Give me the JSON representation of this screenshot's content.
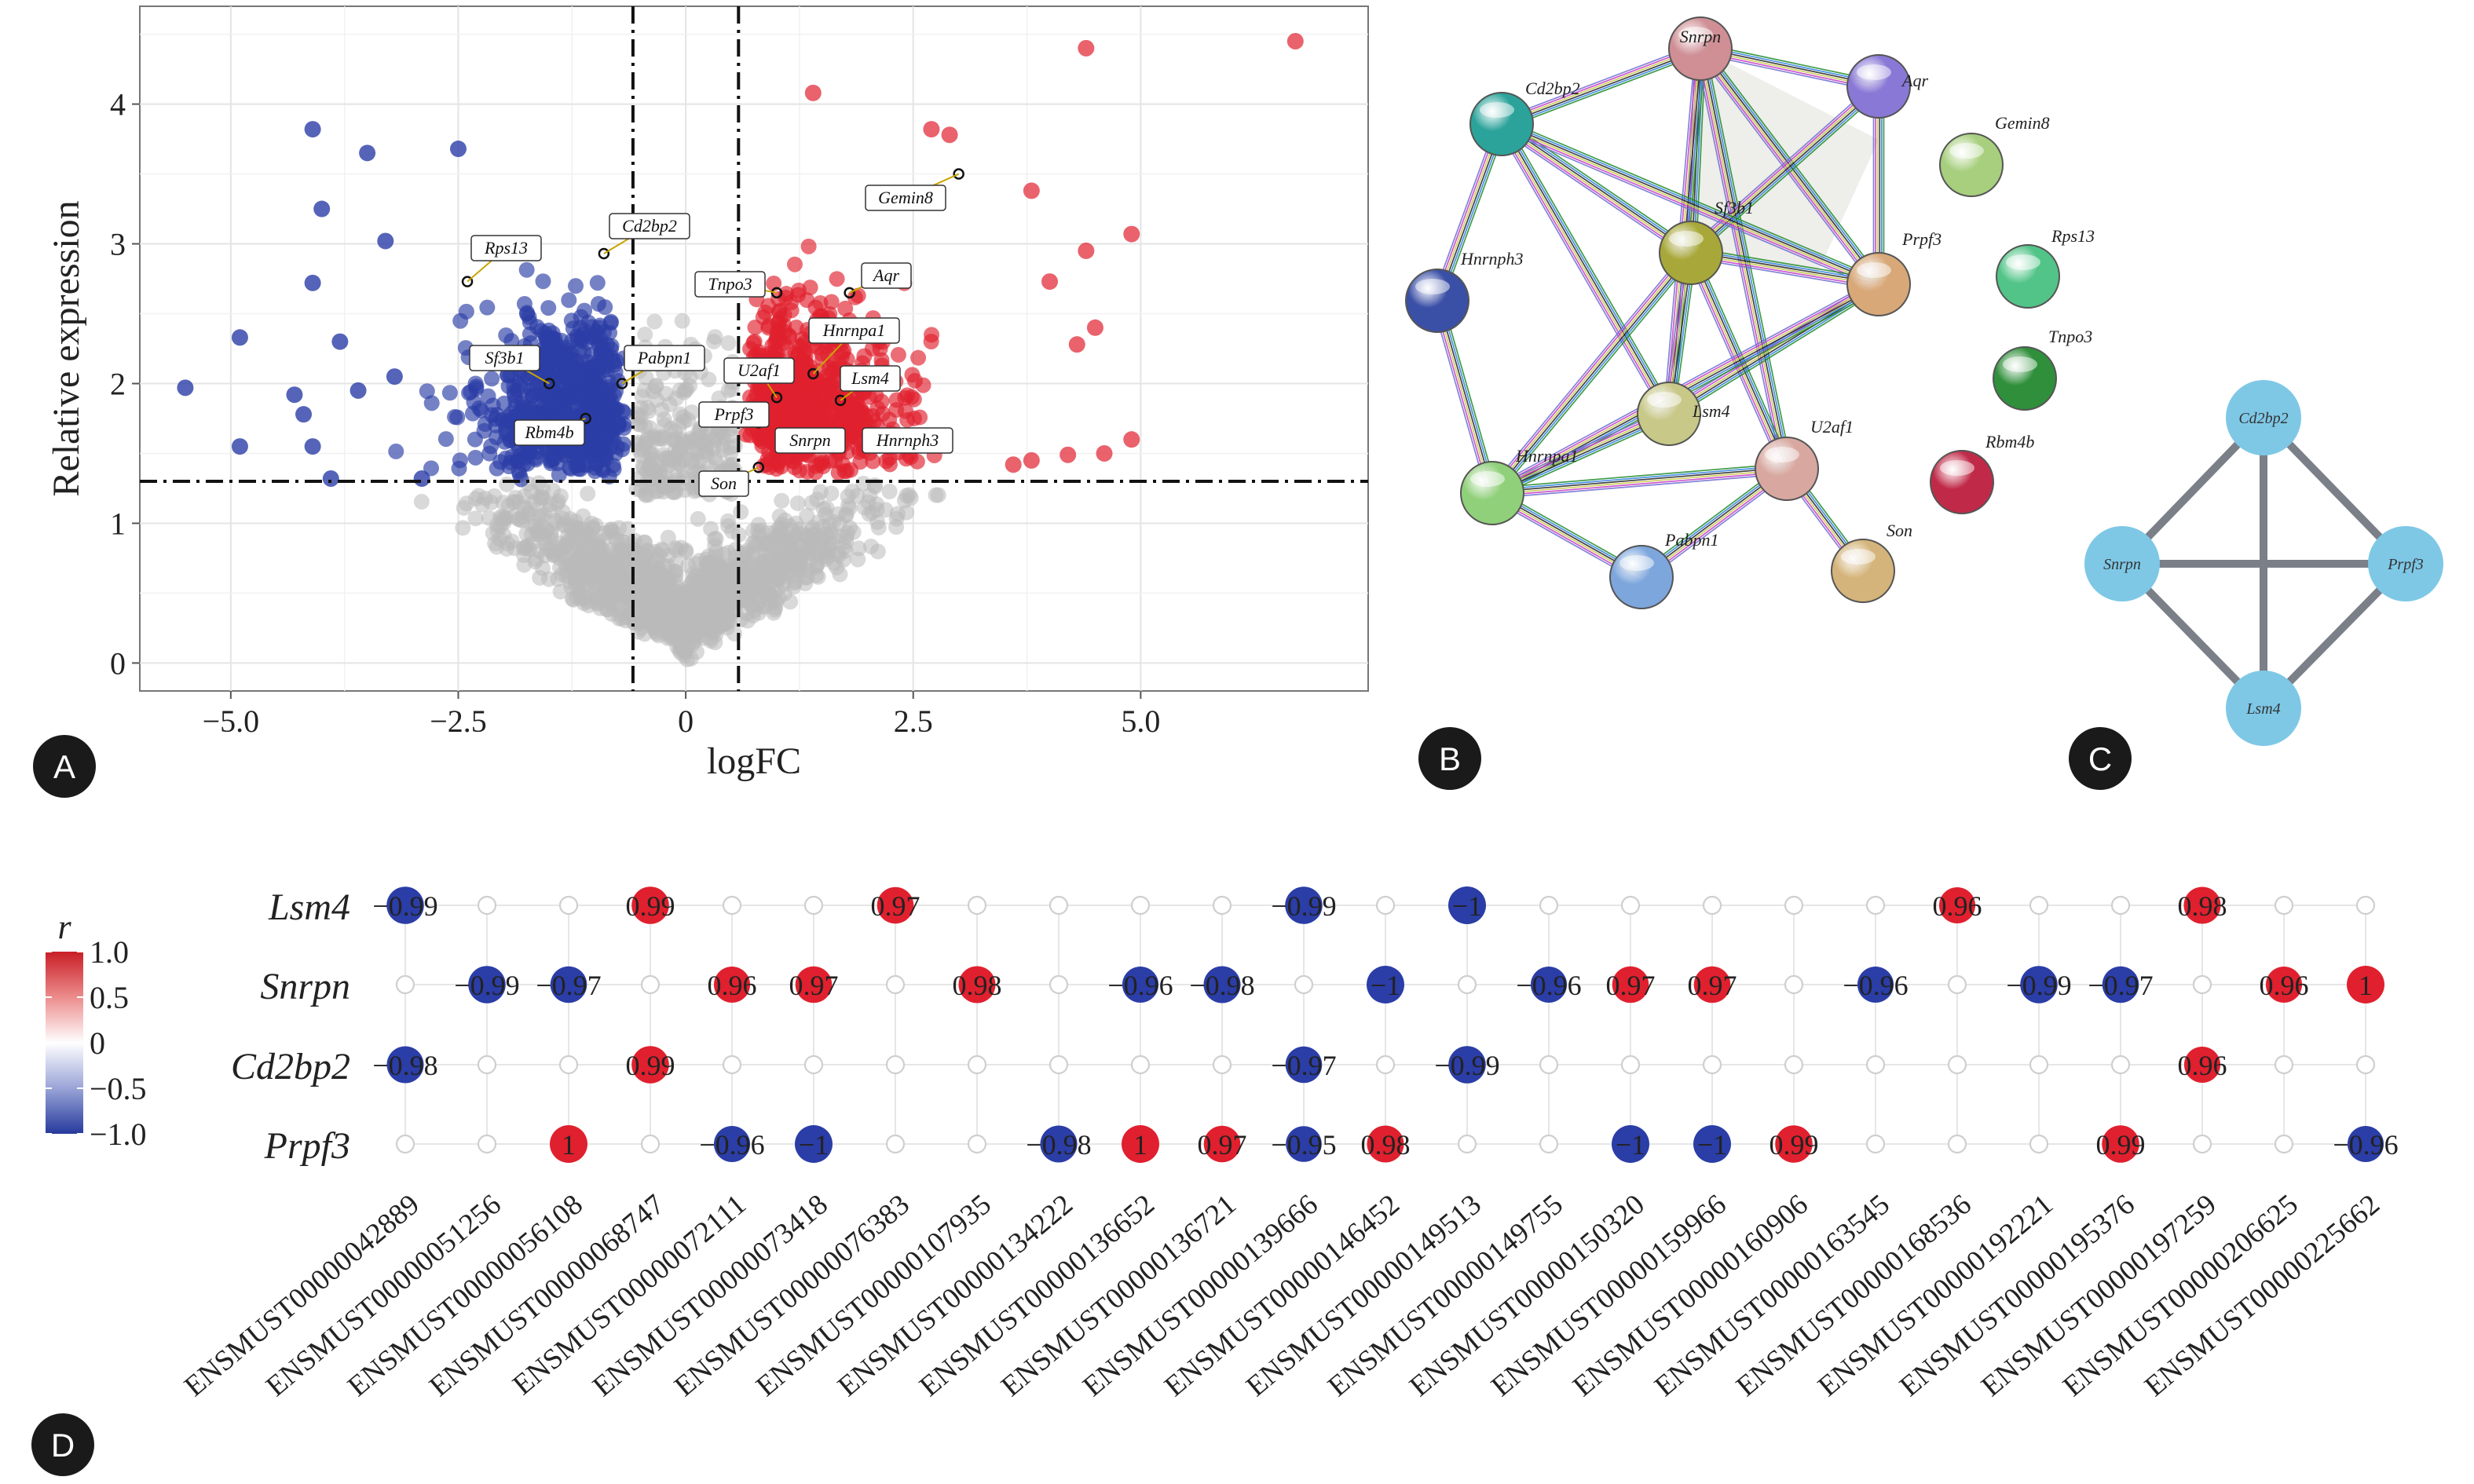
{
  "chart_data": [
    {
      "panel": "A",
      "type": "scatter",
      "subtype": "volcano",
      "xlabel": "logFC",
      "ylabel": "Relative expression",
      "xlim": [
        -6.0,
        7.5
      ],
      "ylim": [
        -0.2,
        4.7
      ],
      "xticks": [
        "-5.0",
        "-2.5",
        "0",
        "2.5",
        "5.0"
      ],
      "xtick_values": [
        -5.0,
        -2.5,
        0,
        2.5,
        5.0
      ],
      "yticks": [
        "0",
        "1",
        "2",
        "3",
        "4"
      ],
      "ytick_values": [
        0,
        1,
        2,
        3,
        4
      ],
      "thresholds": {
        "logFC": [
          -0.58,
          0.58
        ],
        "expression": 1.3
      },
      "colors": {
        "down": "#2b3da6",
        "up": "#e0202e",
        "ns": "#b9b9b9"
      },
      "outlier_points": {
        "down": [
          [
            -5.5,
            1.97
          ],
          [
            -4.9,
            2.33
          ],
          [
            -4.9,
            1.55
          ],
          [
            -4.1,
            3.82
          ],
          [
            -4.1,
            2.72
          ],
          [
            -4.0,
            3.25
          ],
          [
            -4.3,
            1.92
          ],
          [
            -4.2,
            1.78
          ],
          [
            -4.1,
            1.55
          ],
          [
            -3.5,
            3.65
          ],
          [
            -3.8,
            2.3
          ],
          [
            -3.3,
            3.02
          ],
          [
            -2.5,
            3.68
          ],
          [
            -3.9,
            1.32
          ],
          [
            -3.6,
            1.95
          ],
          [
            -3.2,
            2.05
          ],
          [
            -2.9,
            1.32
          ]
        ],
        "up": [
          [
            6.7,
            4.45
          ],
          [
            4.4,
            4.4
          ],
          [
            1.4,
            4.08
          ],
          [
            2.7,
            3.82
          ],
          [
            2.9,
            3.78
          ],
          [
            3.8,
            3.38
          ],
          [
            4.9,
            3.07
          ],
          [
            4.4,
            2.95
          ],
          [
            4.5,
            2.4
          ],
          [
            4.3,
            2.28
          ],
          [
            4.0,
            2.73
          ],
          [
            4.9,
            1.6
          ],
          [
            4.6,
            1.5
          ],
          [
            4.2,
            1.49
          ],
          [
            3.8,
            1.45
          ],
          [
            3.6,
            1.42
          ]
        ]
      },
      "gene_labels": [
        {
          "name": "Rps13",
          "x": -2.4,
          "y": 2.73
        },
        {
          "name": "Cd2bp2",
          "x": -0.9,
          "y": 2.93
        },
        {
          "name": "Sf3b1",
          "x": -1.5,
          "y": 2.0
        },
        {
          "name": "Pabpn1",
          "x": -0.7,
          "y": 2.0
        },
        {
          "name": "Rbm4b",
          "x": -1.1,
          "y": 1.75
        },
        {
          "name": "Gemin8",
          "x": 3.0,
          "y": 3.5
        },
        {
          "name": "Tnpo3",
          "x": 1.0,
          "y": 2.65
        },
        {
          "name": "Aqr",
          "x": 1.8,
          "y": 2.65
        },
        {
          "name": "Hnrnpa1",
          "x": 1.4,
          "y": 2.07
        },
        {
          "name": "U2af1",
          "x": 1.0,
          "y": 1.9
        },
        {
          "name": "Lsm4",
          "x": 1.7,
          "y": 1.88
        },
        {
          "name": "Prpf3",
          "x": 0.8,
          "y": 1.72
        },
        {
          "name": "Snrpn",
          "x": 1.3,
          "y": 1.6
        },
        {
          "name": "Hnrnph3",
          "x": 2.0,
          "y": 1.6
        },
        {
          "name": "Son",
          "x": 0.8,
          "y": 1.4
        }
      ]
    },
    {
      "panel": "B",
      "type": "network",
      "nodes": [
        {
          "name": "Snrpn",
          "color": "#cf8f95"
        },
        {
          "name": "Aqr",
          "color": "#8a78d6"
        },
        {
          "name": "Cd2bp2",
          "color": "#2ba39a"
        },
        {
          "name": "Gemin8",
          "color": "#a7cf7e"
        },
        {
          "name": "Sf3b1",
          "color": "#a8a83a"
        },
        {
          "name": "Prpf3",
          "color": "#d8a878"
        },
        {
          "name": "Rps13",
          "color": "#52c488"
        },
        {
          "name": "Hnrnph3",
          "color": "#3a4fa6"
        },
        {
          "name": "Tnpo3",
          "color": "#2f8f3a"
        },
        {
          "name": "Lsm4",
          "color": "#c8c888"
        },
        {
          "name": "Rbm4b",
          "color": "#c02a48"
        },
        {
          "name": "U2af1",
          "color": "#d8a8a0"
        },
        {
          "name": "Hnrnpa1",
          "color": "#90d07a"
        },
        {
          "name": "Pabpn1",
          "color": "#7da6dc"
        },
        {
          "name": "Son",
          "color": "#d4b47a"
        }
      ],
      "edges": [
        [
          "Snrpn",
          "Aqr"
        ],
        [
          "Snrpn",
          "Cd2bp2"
        ],
        [
          "Snrpn",
          "Sf3b1"
        ],
        [
          "Snrpn",
          "Prpf3"
        ],
        [
          "Snrpn",
          "Lsm4"
        ],
        [
          "Snrpn",
          "U2af1"
        ],
        [
          "Aqr",
          "Sf3b1"
        ],
        [
          "Aqr",
          "Prpf3"
        ],
        [
          "Cd2bp2",
          "Sf3b1"
        ],
        [
          "Cd2bp2",
          "Prpf3"
        ],
        [
          "Cd2bp2",
          "Lsm4"
        ],
        [
          "Cd2bp2",
          "Hnrnph3"
        ],
        [
          "Sf3b1",
          "Prpf3"
        ],
        [
          "Sf3b1",
          "Lsm4"
        ],
        [
          "Sf3b1",
          "U2af1"
        ],
        [
          "Sf3b1",
          "Hnrnpa1"
        ],
        [
          "Prpf3",
          "Lsm4"
        ],
        [
          "Prpf3",
          "Hnrnpa1"
        ],
        [
          "Lsm4",
          "Hnrnpa1"
        ],
        [
          "Hnrnph3",
          "Hnrnpa1"
        ],
        [
          "Hnrnpa1",
          "U2af1"
        ],
        [
          "Hnrnpa1",
          "Pabpn1"
        ],
        [
          "Pabpn1",
          "U2af1"
        ],
        [
          "U2af1",
          "Son"
        ]
      ]
    },
    {
      "panel": "C",
      "type": "network",
      "nodes": [
        "Cd2bp2",
        "Snrpn",
        "Prpf3",
        "Lsm4"
      ],
      "edges": [
        [
          "Cd2bp2",
          "Snrpn"
        ],
        [
          "Cd2bp2",
          "Prpf3"
        ],
        [
          "Cd2bp2",
          "Lsm4"
        ],
        [
          "Snrpn",
          "Prpf3"
        ],
        [
          "Snrpn",
          "Lsm4"
        ],
        [
          "Prpf3",
          "Lsm4"
        ]
      ],
      "node_color": "#7ec8e6",
      "edge_color": "#7a7f88"
    },
    {
      "panel": "D",
      "type": "heatmap",
      "subtype": "correlation-dot",
      "rows": [
        "Lsm4",
        "Snrpn",
        "Cd2bp2",
        "Prpf3"
      ],
      "columns": [
        "ENSMUST00000042889",
        "ENSMUST00000051256",
        "ENSMUST00000056108",
        "ENSMUST00000068747",
        "ENSMUST00000072111",
        "ENSMUST00000073418",
        "ENSMUST00000076383",
        "ENSMUST00000107935",
        "ENSMUST00000134222",
        "ENSMUST00000136652",
        "ENSMUST00000136721",
        "ENSMUST00000139666",
        "ENSMUST00000146452",
        "ENSMUST00000149513",
        "ENSMUST00000149755",
        "ENSMUST00000150320",
        "ENSMUST00000159966",
        "ENSMUST00000160906",
        "ENSMUST00000163545",
        "ENSMUST00000168536",
        "ENSMUST00000192221",
        "ENSMUST00000195376",
        "ENSMUST00000197259",
        "ENSMUST00000206625",
        "ENSMUST00000225662"
      ],
      "values": [
        [
          -0.99,
          null,
          null,
          0.99,
          null,
          null,
          0.97,
          null,
          null,
          null,
          null,
          -0.99,
          null,
          -1,
          null,
          null,
          null,
          null,
          null,
          0.96,
          null,
          null,
          0.98,
          null,
          null
        ],
        [
          null,
          -0.99,
          -0.97,
          null,
          0.96,
          0.97,
          null,
          0.98,
          null,
          -0.96,
          -0.98,
          null,
          -1,
          null,
          -0.96,
          0.97,
          0.97,
          null,
          -0.96,
          null,
          -0.99,
          -0.97,
          null,
          0.96,
          1
        ],
        [
          -0.98,
          null,
          null,
          0.99,
          null,
          null,
          null,
          null,
          null,
          null,
          null,
          -0.97,
          null,
          -0.99,
          null,
          null,
          null,
          null,
          null,
          null,
          null,
          null,
          0.96,
          null,
          null
        ],
        [
          null,
          null,
          1,
          null,
          -0.96,
          -1,
          null,
          null,
          -0.98,
          1,
          0.97,
          -0.95,
          0.98,
          null,
          null,
          -1,
          -1,
          0.99,
          null,
          null,
          null,
          0.99,
          null,
          null,
          -0.96
        ]
      ],
      "labels": [
        [
          "-0.99",
          null,
          null,
          "0.99",
          null,
          null,
          "0.97",
          null,
          null,
          null,
          null,
          "-0.99",
          null,
          "-1",
          null,
          null,
          null,
          null,
          null,
          "0.96",
          null,
          null,
          "0.98",
          null,
          null
        ],
        [
          null,
          "-0.99",
          "-0.97",
          null,
          "0.96",
          "0.97",
          null,
          "0.98",
          null,
          "-0.96",
          "-0.98",
          null,
          "-1",
          null,
          "-0.96",
          "0.97",
          "0.97",
          null,
          "-0.96",
          null,
          "-0.99",
          "-0.97",
          null,
          "0.96",
          "1"
        ],
        [
          "-0.98",
          null,
          null,
          "0.99",
          null,
          null,
          null,
          null,
          null,
          null,
          null,
          "-0.97",
          null,
          "-0.99",
          null,
          null,
          null,
          null,
          null,
          null,
          null,
          null,
          "0.96",
          null,
          null
        ],
        [
          null,
          null,
          "1",
          null,
          "-0.96",
          "-1",
          null,
          null,
          "-0.98",
          "1",
          "0.97",
          "-0.95",
          "0.98",
          null,
          null,
          "-1",
          "-1",
          "0.99",
          null,
          null,
          null,
          "0.99",
          null,
          null,
          "-0.96"
        ]
      ],
      "legend": {
        "title": "r",
        "ticks": [
          "1.0",
          "0.5",
          "0",
          "-0.5",
          "-1.0"
        ],
        "tick_values": [
          1.0,
          0.5,
          0,
          -0.5,
          -1.0
        ]
      },
      "colors": {
        "neg": "#2b3da6",
        "pos": "#e0202e"
      }
    }
  ],
  "panel_labels": {
    "A": "A",
    "B": "B",
    "C": "C",
    "D": "D"
  }
}
